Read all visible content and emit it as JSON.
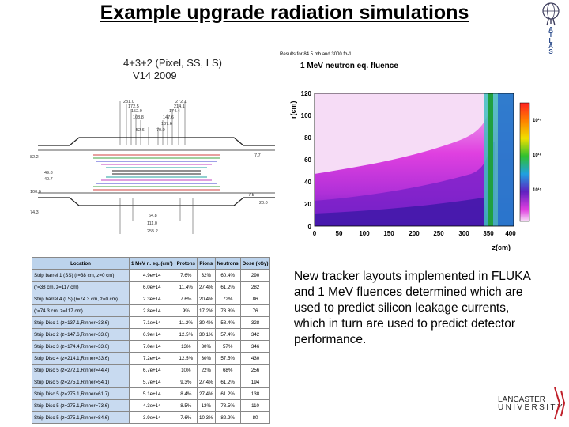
{
  "slide": {
    "title": "Example upgrade radiation simulations",
    "description": "New tracker layouts implemented in FLUKA and 1 MeV fluences determined which are used to predict silicon leakage currents, which in turn are used to predict detector performance."
  },
  "layout_figure": {
    "caption_line1": "4+3+2 (Pixel, SS, LS)",
    "caption_line2": "V14 2009",
    "labels": [
      "231.0",
      "272.1",
      "172.5",
      "214.1",
      "152.0",
      "174.4",
      "108.8",
      "147.6",
      "137.6",
      "52.6",
      "70.0",
      "82.2",
      "7.7",
      "49.8",
      "40.7",
      "100.0",
      "7.5",
      "74.3",
      "20.0",
      "64.8",
      "111.0",
      "255.2"
    ]
  },
  "fluka_figure": {
    "results_text": "Results for 84.5 mb and 3000 fb-1",
    "plot_title": "1 MeV neutron eq. fluence",
    "y_label": "r(cm)",
    "x_label": "z(cm)",
    "y_ticks": [
      "0",
      "20",
      "40",
      "60",
      "80",
      "100",
      "120"
    ],
    "x_ticks": [
      "0",
      "50",
      "100",
      "150",
      "200",
      "250",
      "300",
      "350",
      "400"
    ],
    "colorbar_labels": [
      "10¹⁷",
      "10¹⁶",
      "10¹⁵"
    ]
  },
  "table": {
    "headers": [
      "Location",
      "1 MeV n. eq. (cm²)",
      "Protons",
      "Pions",
      "Neutrons",
      "Dose (kGy)"
    ],
    "rows": [
      [
        "Strip barrel 1 (SS) (r=38 cm, z=0 cm)",
        "4.9e+14",
        "7.6%",
        "32%",
        "60.4%",
        "290"
      ],
      [
        "(r=38 cm, z=117 cm)",
        "6.0e+14",
        "11.4%",
        "27.4%",
        "61.2%",
        "282"
      ],
      [
        "Strip barrel 4 (LS) (r=74.3 cm, z=0 cm)",
        "2.3e+14",
        "7.6%",
        "20.4%",
        "72%",
        "86"
      ],
      [
        "(r=74.3 cm, z=117 cm)",
        "2.8e+14",
        "9%",
        "17.2%",
        "73.8%",
        "76"
      ],
      [
        "Strip Disc 1 (z=137.1,Rinner=33.6)",
        "7.1e+14",
        "11.2%",
        "30.4%",
        "58.4%",
        "328"
      ],
      [
        "Strip Disc 2 (z=147.6,Rinner=33.6)",
        "6.9e+14",
        "12.5%",
        "30.1%",
        "57.4%",
        "342"
      ],
      [
        "Strip Disc 3 (z=174.4,Rinner=33.6)",
        "7.0e+14",
        "13%",
        "30%",
        "57%",
        "346"
      ],
      [
        "Strip Disc 4 (z=214.1,Rinner=33.6)",
        "7.2e+14",
        "12.5%",
        "30%",
        "57.5%",
        "430"
      ],
      [
        "Strip Disc 5 (z=272.1,Rinner=44.4)",
        "6.7e+14",
        "10%",
        "22%",
        "68%",
        "256"
      ],
      [
        "Strip Disc 5 (z=275.1,Rinner=54.1)",
        "5.7e+14",
        "9.3%",
        "27.4%",
        "61.2%",
        "194"
      ],
      [
        "Strip Disc 5 (z=275.1,Rinner=61.7)",
        "5.1e+14",
        "8.4%",
        "27.4%",
        "61.2%",
        "138"
      ],
      [
        "Strip Disc 5 (z=275.1,Rinner=73.6)",
        "4.3e+14",
        "8.5%",
        "13%",
        "78.5%",
        "110"
      ],
      [
        "Strip Disc 5 (z=275.1,Rinner=84.6)",
        "3.9e+14",
        "7.6%",
        "10.3%",
        "82.2%",
        "80"
      ]
    ]
  },
  "logos": {
    "atlas_letters": [
      "A",
      "T",
      "L",
      "A",
      "S"
    ],
    "lancaster_name": "LANCASTER",
    "lancaster_sub": "UNIVERSITY"
  },
  "colors": {
    "table_header": "#bcd3ec",
    "table_location": "#c8daf0",
    "fluence_high": "#e040e0",
    "fluence_low": "#6020c0"
  }
}
